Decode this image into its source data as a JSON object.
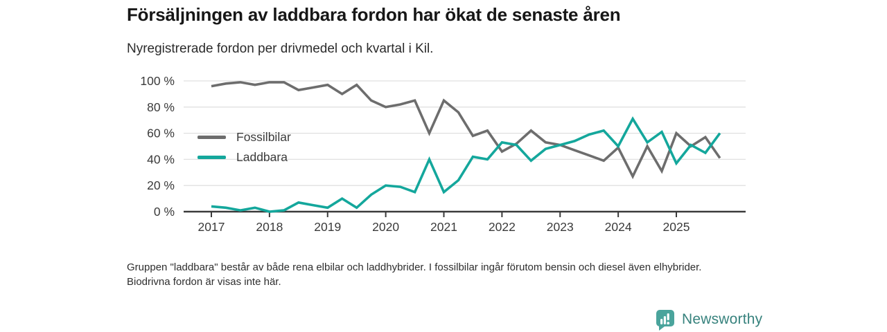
{
  "header": {
    "title": "Försäljningen av laddbara fordon har ökat de senaste åren",
    "subtitle": "Nyregistrerade fordon per drivmedel och kvartal i Kil."
  },
  "chart_data": {
    "type": "line",
    "x_unit": "quarter",
    "categories": [
      "2017 Q1",
      "2017 Q2",
      "2017 Q3",
      "2017 Q4",
      "2018 Q1",
      "2018 Q2",
      "2018 Q3",
      "2018 Q4",
      "2019 Q1",
      "2019 Q2",
      "2019 Q3",
      "2019 Q4",
      "2020 Q1",
      "2020 Q2",
      "2020 Q3",
      "2020 Q4",
      "2021 Q1",
      "2021 Q2",
      "2021 Q3",
      "2021 Q4",
      "2022 Q1",
      "2022 Q2",
      "2022 Q3",
      "2022 Q4",
      "2023 Q1",
      "2023 Q2",
      "2023 Q3",
      "2023 Q4",
      "2024 Q1",
      "2024 Q2",
      "2024 Q3",
      "2024 Q4",
      "2025 Q1",
      "2025 Q2",
      "2025 Q3",
      "2025 Q4"
    ],
    "series": [
      {
        "name": "Fossilbilar",
        "color": "#6d6d6d",
        "values": [
          96,
          98,
          99,
          97,
          99,
          99,
          93,
          95,
          97,
          90,
          97,
          85,
          80,
          82,
          85,
          60,
          85,
          76,
          58,
          62,
          46,
          52,
          62,
          53,
          51,
          47,
          43,
          39,
          49,
          27,
          50,
          31,
          60,
          50,
          57,
          41
        ]
      },
      {
        "name": "Laddbara",
        "color": "#14a79c",
        "values": [
          4,
          3,
          1,
          3,
          0,
          1,
          7,
          5,
          3,
          10,
          3,
          13,
          20,
          19,
          15,
          40,
          15,
          24,
          42,
          40,
          53,
          51,
          39,
          48,
          51,
          54,
          59,
          62,
          50,
          71,
          53,
          61,
          37,
          51,
          45,
          60
        ]
      }
    ],
    "ylim": [
      0,
      100
    ],
    "y_tick_values": [
      0,
      20,
      40,
      60,
      80,
      100
    ],
    "y_tick_labels": [
      "0 %",
      "20 %",
      "40 %",
      "60 %",
      "80 %",
      "100 %"
    ],
    "x_tick_labels": [
      "2017",
      "2018",
      "2019",
      "2020",
      "2021",
      "2022",
      "2023",
      "2024",
      "2025"
    ],
    "grid": "horizontal",
    "legend_position": "inside-top-left",
    "xlabel": "",
    "ylabel": ""
  },
  "footnote": "Gruppen \"laddbara\" består av både rena elbilar och laddhybrider. I fossilbilar ingår förutom bensin och diesel även elhybrider. Biodrivna fordon är visas inte här.",
  "branding": {
    "logo_text": "Newsworthy",
    "logo_icon": "bar-chart-speech-bubble-icon",
    "icon_color": "#4aa49c",
    "text_color": "#37827d"
  }
}
